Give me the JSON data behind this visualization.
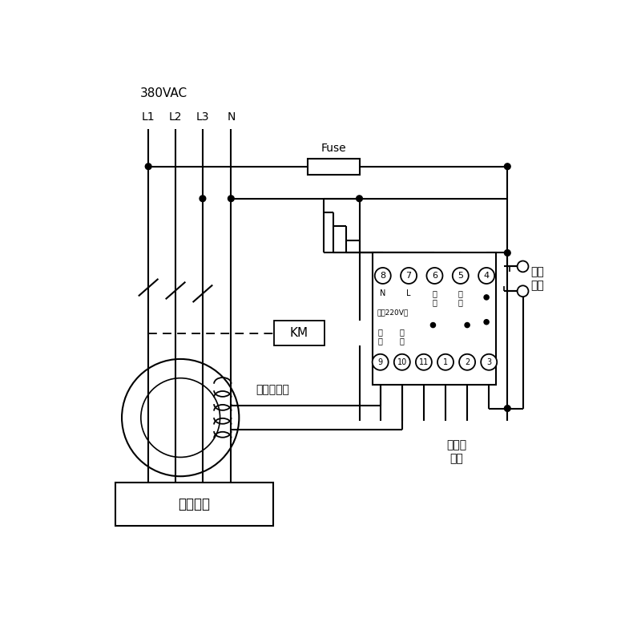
{
  "bg_color": "#ffffff",
  "voltage_label": "380VAC",
  "phase_labels": [
    "L1",
    "L2",
    "L3",
    "N"
  ],
  "fuse_label": "Fuse",
  "km_label": "KM",
  "transformer_label": "零序互感器",
  "user_device_label": "用户设备",
  "relay_top_terminals": [
    "8",
    "7",
    "6",
    "5",
    "4"
  ],
  "relay_top_sub": [
    "N",
    "L",
    "试\n验",
    "试\n验",
    ""
  ],
  "relay_power_label": "电源220V～",
  "relay_bottom_terminals": [
    "9",
    "10",
    "11",
    "1",
    "2",
    "3"
  ],
  "relay_bot_sub": [
    "信\n号",
    "信\n号",
    "",
    "",
    "",
    ""
  ],
  "sound_light_label": "接声光\n报警",
  "self_lock_label": "自锁\n开关"
}
